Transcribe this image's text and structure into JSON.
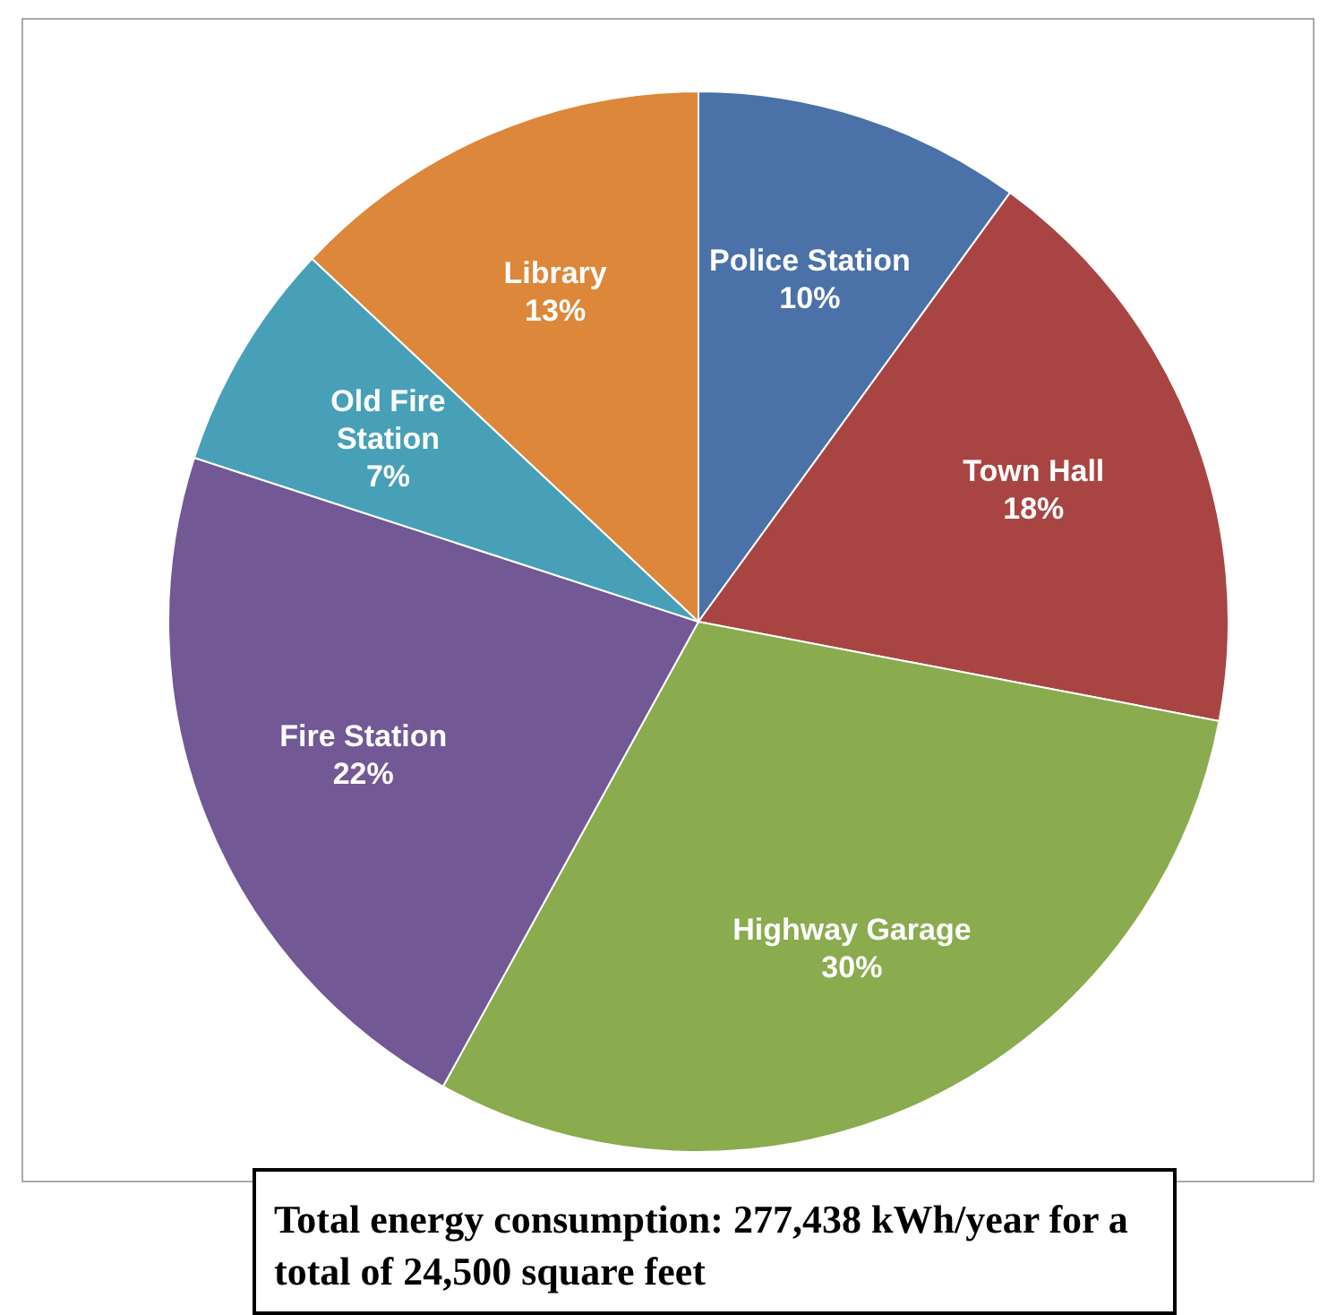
{
  "chart_data": {
    "type": "pie",
    "categories": [
      "Police Station",
      "Town Hall",
      "Highway Garage",
      "Fire Station",
      "Old Fire Station",
      "Library"
    ],
    "values": [
      10,
      18,
      30,
      22,
      7,
      13
    ],
    "colors": [
      "#4a71a8",
      "#a84543",
      "#8aab4e",
      "#725895",
      "#47a0b8",
      "#dc8739"
    ],
    "value_labels": [
      "10%",
      "18%",
      "30%",
      "22%",
      "7%",
      "13%"
    ],
    "annotations": [
      "Total energy consumption: 277,438 kWh/year for a total of 24,500 square feet"
    ]
  }
}
